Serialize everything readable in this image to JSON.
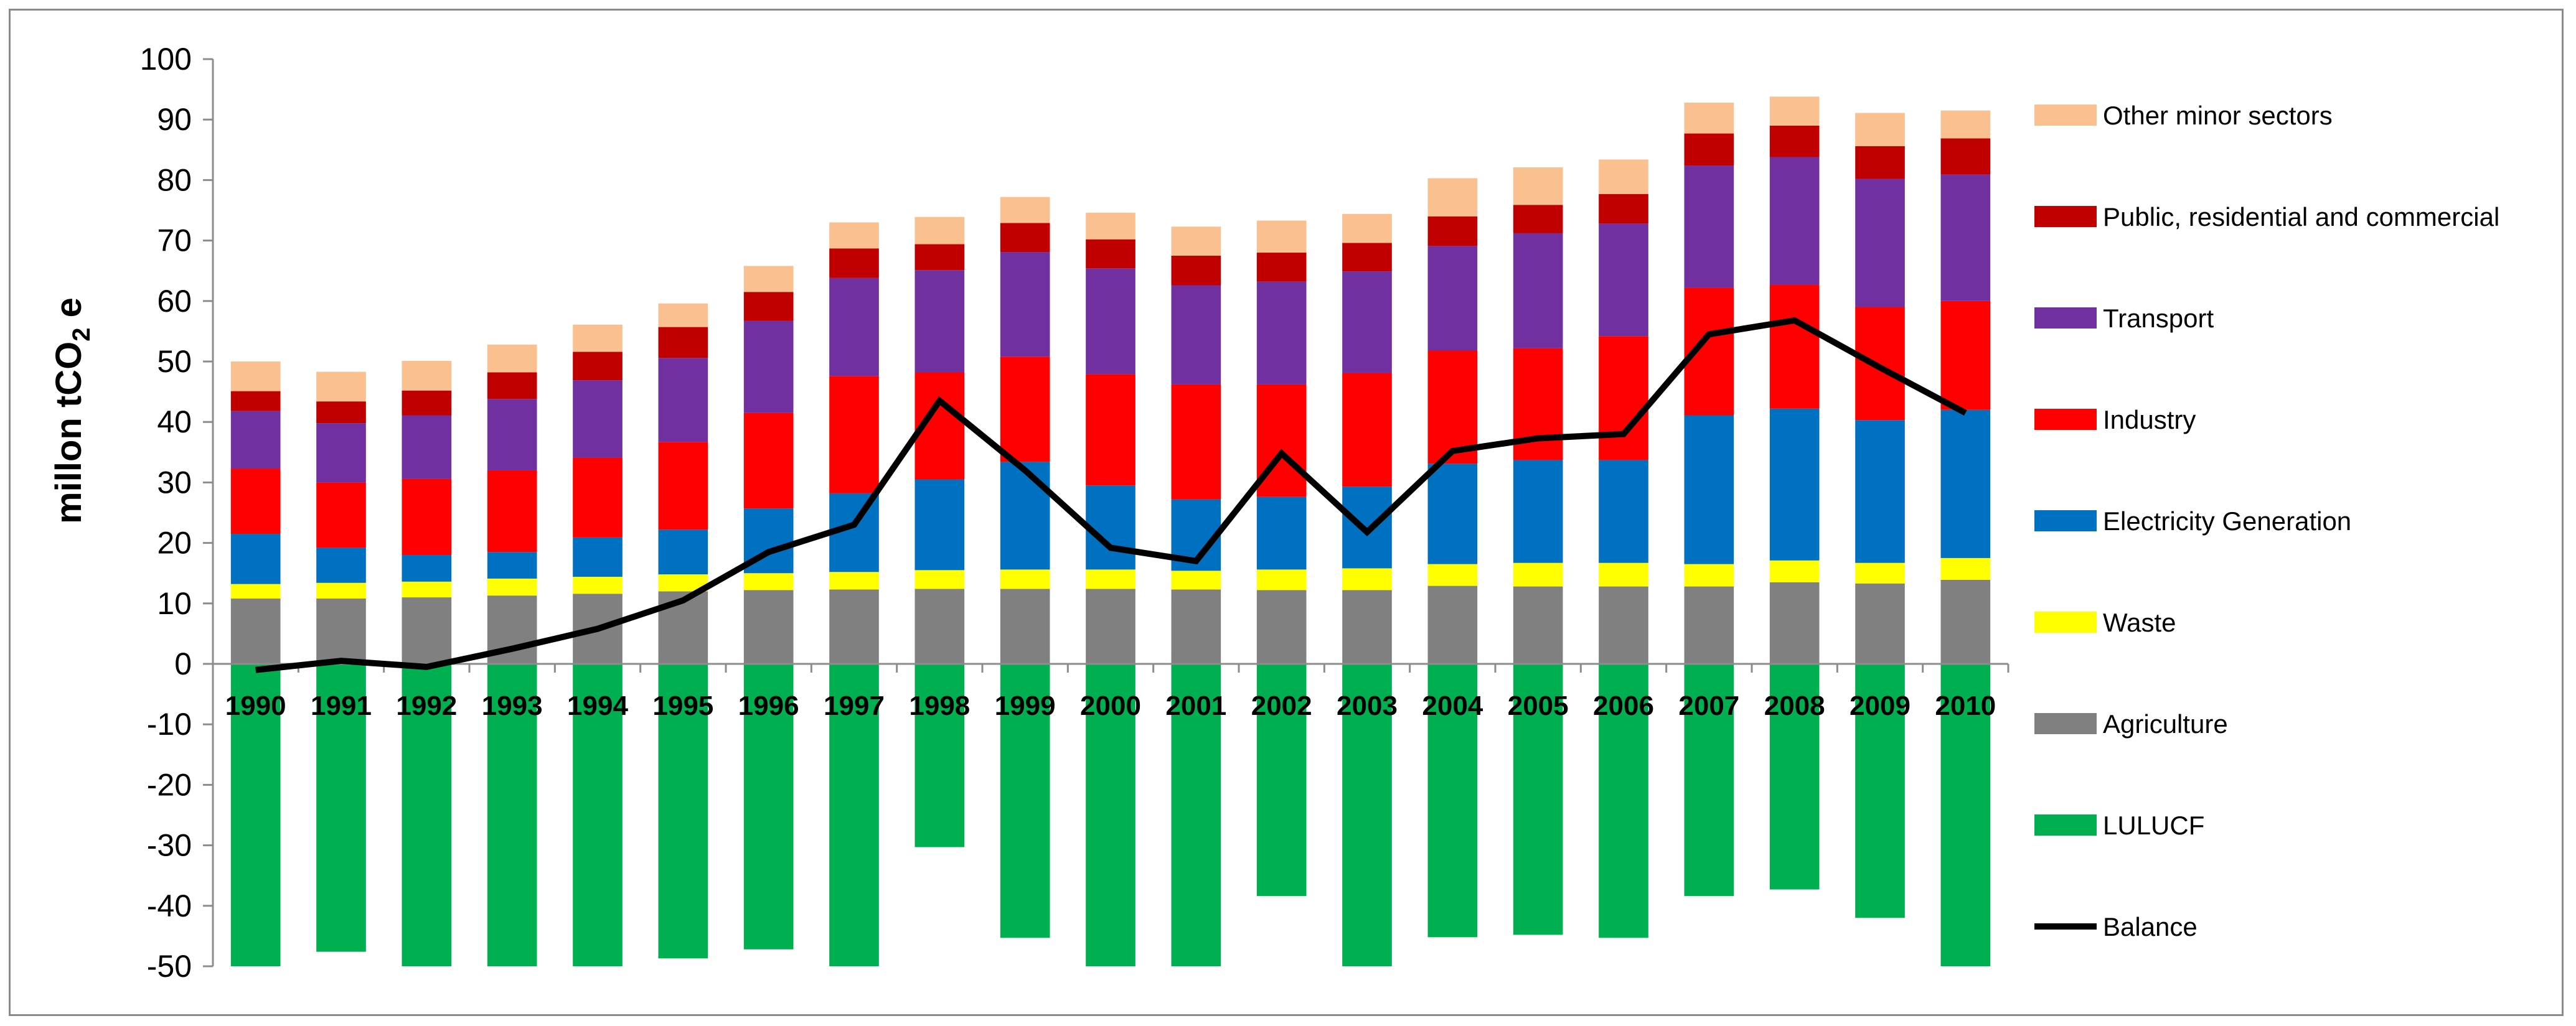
{
  "chart_data": {
    "type": "bar",
    "stacked": true,
    "ylabel": {
      "prefix": "millon tCO",
      "subscript": "2",
      "suffix": " e"
    },
    "ylim": [
      -50,
      100
    ],
    "yticks": [
      -50,
      -40,
      -30,
      -20,
      -10,
      0,
      10,
      20,
      30,
      40,
      50,
      60,
      70,
      80,
      90,
      100
    ],
    "grid": false,
    "legend_position": "right",
    "categories": [
      "1990",
      "1991",
      "1992",
      "1993",
      "1994",
      "1995",
      "1996",
      "1997",
      "1998",
      "1999",
      "2000",
      "2001",
      "2002",
      "2003",
      "2004",
      "2005",
      "2006",
      "2007",
      "2008",
      "2009",
      "2010"
    ],
    "series": [
      {
        "name": "Agriculture",
        "color": "#808080",
        "values": [
          10.8,
          10.8,
          11.0,
          11.3,
          11.6,
          12.0,
          12.2,
          12.3,
          12.4,
          12.4,
          12.4,
          12.3,
          12.2,
          12.2,
          12.9,
          12.8,
          12.8,
          12.8,
          13.5,
          13.3,
          13.9
        ]
      },
      {
        "name": "Waste",
        "color": "#ffff00",
        "values": [
          2.4,
          2.6,
          2.6,
          2.8,
          2.8,
          2.8,
          2.8,
          2.9,
          3.1,
          3.2,
          3.2,
          3.1,
          3.4,
          3.6,
          3.6,
          3.9,
          3.9,
          3.7,
          3.6,
          3.4,
          3.6
        ]
      },
      {
        "name": "Electricity Generation",
        "color": "#0070c0",
        "values": [
          8.3,
          5.8,
          4.4,
          4.4,
          6.5,
          7.4,
          10.7,
          13.0,
          15.0,
          17.8,
          13.9,
          11.8,
          12.0,
          13.5,
          16.6,
          17.0,
          17.0,
          24.6,
          25.1,
          23.6,
          24.5
        ]
      },
      {
        "name": "Industry",
        "color": "#ff0000",
        "values": [
          10.8,
          10.8,
          12.6,
          13.5,
          13.2,
          14.5,
          15.8,
          19.4,
          17.7,
          17.4,
          18.4,
          19.0,
          18.6,
          18.8,
          18.7,
          18.5,
          20.5,
          21.1,
          20.5,
          18.7,
          18.0
        ]
      },
      {
        "name": "Transport",
        "color": "#7030a0",
        "values": [
          9.5,
          9.8,
          10.5,
          11.8,
          12.8,
          13.9,
          15.2,
          16.2,
          16.9,
          17.3,
          17.5,
          16.4,
          17.0,
          16.8,
          17.3,
          19.0,
          18.6,
          20.2,
          21.1,
          21.2,
          20.9
        ]
      },
      {
        "name": "Public, residential and commercial",
        "color": "#c00000",
        "values": [
          3.3,
          3.6,
          4.1,
          4.4,
          4.7,
          5.1,
          4.8,
          4.9,
          4.3,
          4.8,
          4.8,
          4.9,
          4.8,
          4.7,
          4.9,
          4.7,
          4.9,
          5.3,
          5.2,
          5.4,
          6.0
        ]
      },
      {
        "name": "Other minor sectors",
        "color": "#fac090",
        "values": [
          4.9,
          4.9,
          4.9,
          4.6,
          4.5,
          3.9,
          4.3,
          4.3,
          4.5,
          4.3,
          4.4,
          4.8,
          5.3,
          4.8,
          6.3,
          6.2,
          5.7,
          5.1,
          4.8,
          5.5,
          4.6
        ]
      },
      {
        "name": "LULUCF",
        "color": "#00b050",
        "values": [
          -50.0,
          -47.6,
          -50.0,
          -50.0,
          -50.0,
          -48.7,
          -47.2,
          -50.0,
          -30.3,
          -45.3,
          -50.0,
          -50.0,
          -38.4,
          -50.0,
          -45.2,
          -44.8,
          -45.3,
          -38.4,
          -37.3,
          -42.0,
          -50.0
        ]
      }
    ],
    "balance": {
      "name": "Balance",
      "color": "#000000",
      "values": [
        -1.0,
        0.5,
        -0.5,
        2.5,
        5.8,
        10.5,
        18.5,
        23.0,
        43.5,
        32.0,
        19.2,
        17.0,
        34.8,
        21.8,
        35.2,
        37.3,
        38.0,
        54.5,
        56.8,
        49.0,
        41.5
      ]
    },
    "legend_order": [
      "Other minor sectors",
      "Public, residential and commercial",
      "Transport",
      "Industry",
      "Electricity Generation",
      "Waste",
      "Agriculture",
      "LULUCF",
      "Balance"
    ]
  }
}
